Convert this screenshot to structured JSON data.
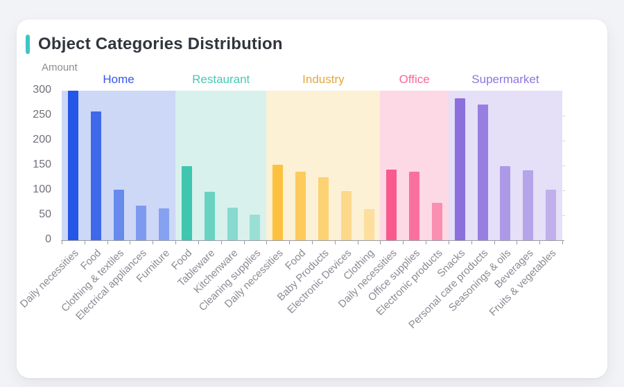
{
  "page": {
    "background_color": "#f2f3f6",
    "card_background": "#ffffff"
  },
  "header": {
    "title": "Object Categories Distribution",
    "accent_color": "#3fc6c1"
  },
  "axis": {
    "y_name": "Amount",
    "line_color": "#9a9ba3",
    "y_label_color": "#6f7078",
    "x_label_color": "#8a8a94"
  },
  "chart_data": {
    "type": "bar",
    "title": "Object Categories Distribution",
    "xlabel": "",
    "ylabel": "Amount",
    "ylim": [
      0,
      300
    ],
    "yticks": [
      0,
      50,
      100,
      150,
      200,
      250,
      300
    ],
    "grid": false,
    "legend_position": "none",
    "x_tick_rotation": 45,
    "groups": [
      {
        "name": "Home",
        "color": "#2456e8",
        "label_color": "#3355e8",
        "band_color": "#cdd7f6",
        "alphas": [
          1,
          0.85,
          0.6,
          0.47,
          0.42
        ],
        "bars": [
          {
            "label": "Daily necessities",
            "value": 300
          },
          {
            "label": "Food",
            "value": 258
          },
          {
            "label": "Clothing & textiles",
            "value": 102
          },
          {
            "label": "Electrical appliances",
            "value": 69
          },
          {
            "label": "Furniture",
            "value": 64
          }
        ]
      },
      {
        "name": "Restaurant",
        "color": "#3ec6b0",
        "label_color": "#43cbb3",
        "band_color": "#d8f1ec",
        "alphas": [
          1,
          0.72,
          0.52,
          0.4
        ],
        "bars": [
          {
            "label": "Food",
            "value": 148
          },
          {
            "label": "Tableware",
            "value": 97
          },
          {
            "label": "Kitchenware",
            "value": 65
          },
          {
            "label": "Cleaning supplies",
            "value": 51
          }
        ]
      },
      {
        "name": "Industry",
        "color": "#fcc23f",
        "label_color": "#e2a83e",
        "band_color": "#fcf0d5",
        "alphas": [
          1,
          0.82,
          0.65,
          0.5,
          0.38
        ],
        "bars": [
          {
            "label": "Daily necessities",
            "value": 151
          },
          {
            "label": "Food",
            "value": 138
          },
          {
            "label": "Baby Products",
            "value": 126
          },
          {
            "label": "Electronic Devices",
            "value": 99
          },
          {
            "label": "Clothing",
            "value": 63
          }
        ]
      },
      {
        "name": "Office",
        "color": "#f9598c",
        "label_color": "#f9679a",
        "band_color": "#fcd9e5",
        "alphas": [
          1,
          0.82,
          0.58
        ],
        "bars": [
          {
            "label": "Daily necessities",
            "value": 142
          },
          {
            "label": "Office supplies",
            "value": 138
          },
          {
            "label": "Electronic products",
            "value": 75
          }
        ]
      },
      {
        "name": "Supermarket",
        "color": "#8a6fdd",
        "label_color": "#8d74de",
        "band_color": "#e5dff7",
        "alphas": [
          1,
          0.85,
          0.62,
          0.53,
          0.42
        ],
        "bars": [
          {
            "label": "Snacks",
            "value": 285
          },
          {
            "label": "Personal care products",
            "value": 272
          },
          {
            "label": "Seasonings & oils",
            "value": 148
          },
          {
            "label": "Beverages",
            "value": 140
          },
          {
            "label": "Fruits & vegetables",
            "value": 102
          }
        ]
      }
    ]
  }
}
